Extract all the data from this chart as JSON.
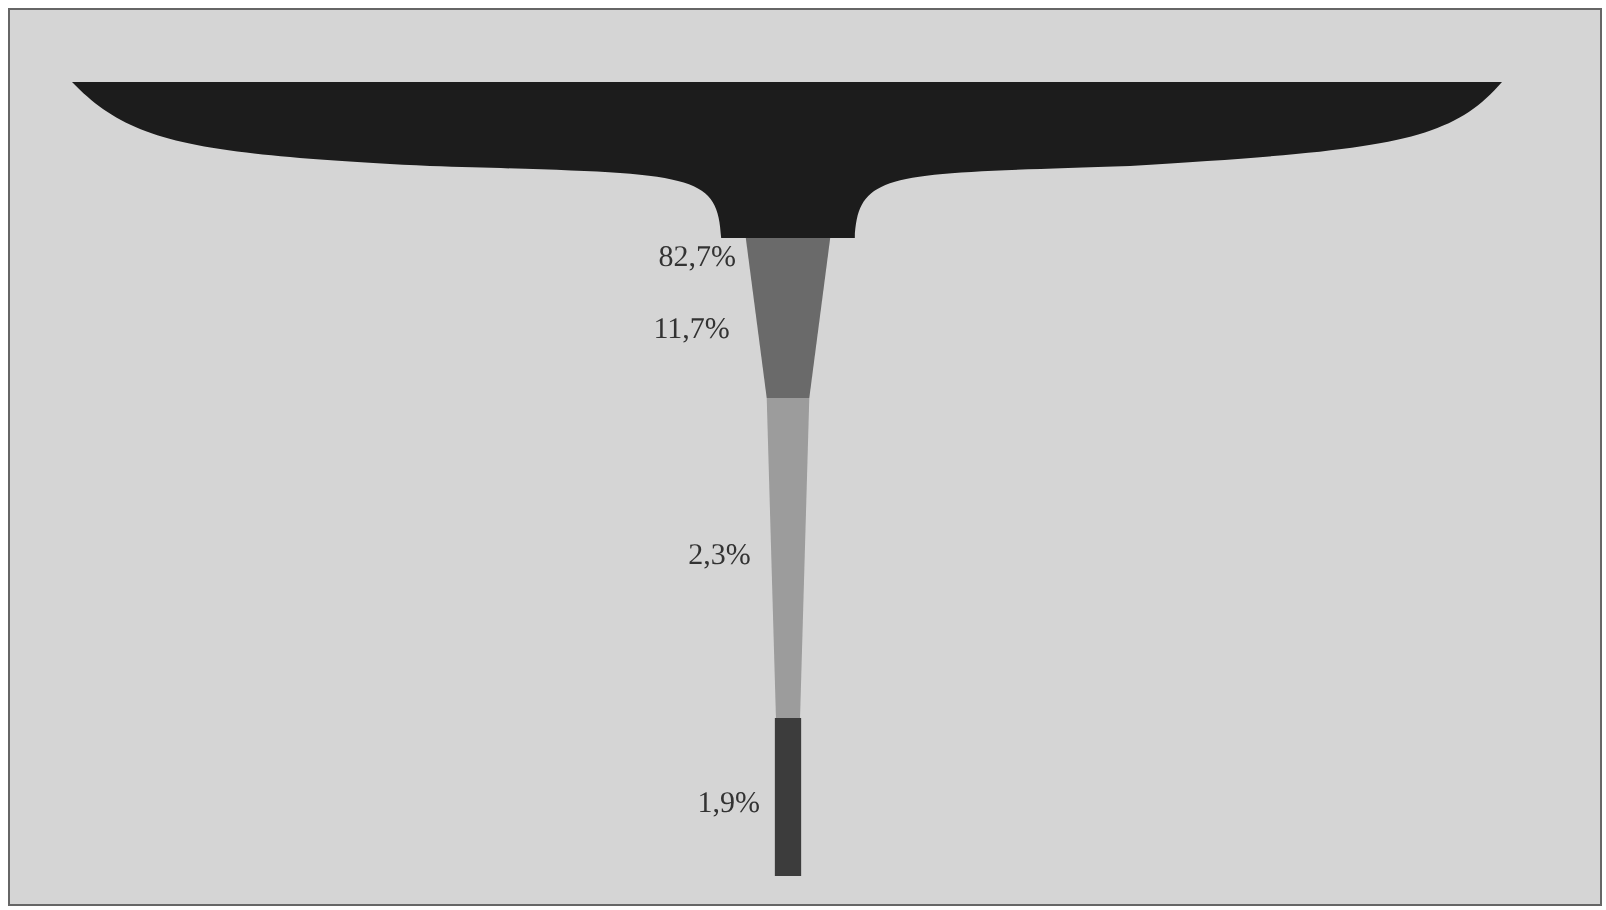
{
  "chart_data": {
    "type": "other",
    "categories": [
      null,
      null,
      null,
      null
    ],
    "values": [
      82.7,
      11.7,
      2.3,
      1.9
    ],
    "colors": [
      "#1c1c1c",
      "#6a6a6a",
      "#9c9c9c",
      "#3c3c3c"
    ],
    "value_labels": [
      "82,7%",
      "11,7%",
      "2,3%",
      "1,9%"
    ]
  }
}
